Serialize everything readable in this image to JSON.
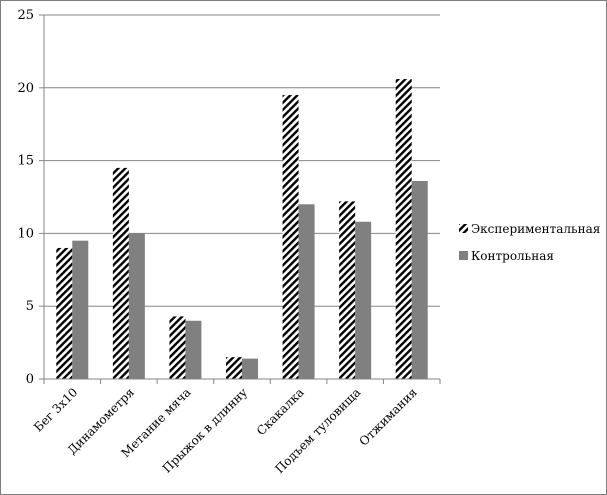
{
  "chart_data": {
    "type": "bar",
    "categories": [
      "Бег 3х10",
      "Динамометря",
      "Метание мяча",
      "Прыжок в длинну",
      "Скакалка",
      "Подъем туловища",
      "Отжимания"
    ],
    "series": [
      {
        "name": "Экспериментальная",
        "pattern": "diagonal-hatch",
        "values": [
          9.0,
          14.5,
          4.3,
          1.5,
          19.5,
          12.2,
          20.6
        ]
      },
      {
        "name": "Контрольная",
        "color": "#808080",
        "values": [
          9.5,
          10.0,
          4.0,
          1.4,
          12.0,
          10.8,
          13.6
        ]
      }
    ],
    "ylim": [
      0,
      25
    ],
    "yticks": [
      0,
      5,
      10,
      15,
      20,
      25
    ],
    "grid": "horizontal",
    "legend": "right",
    "title": "",
    "xlabel": "",
    "ylabel": ""
  }
}
